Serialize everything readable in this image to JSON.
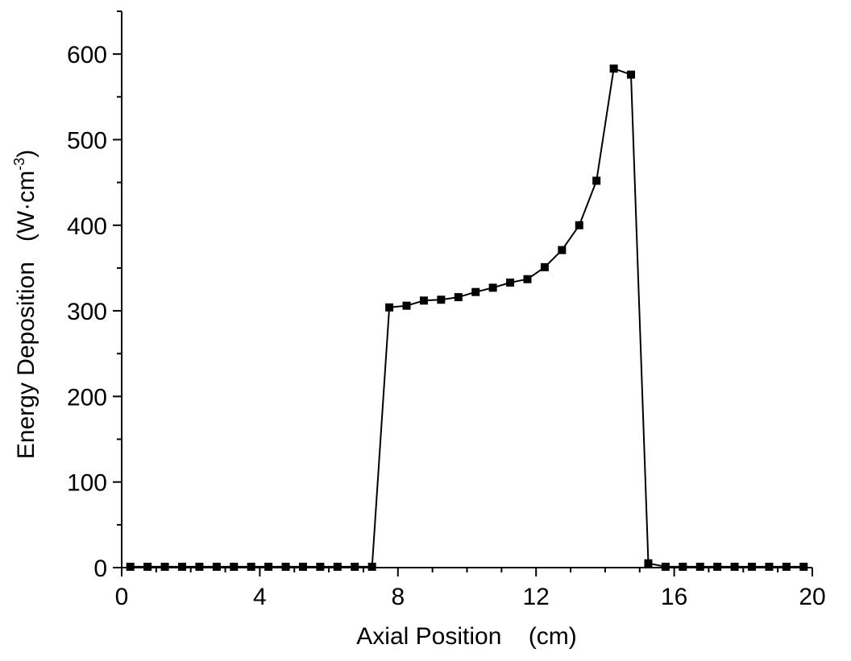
{
  "chart_data": {
    "type": "line",
    "title": "",
    "xlabel": "Axial Position    (cm)",
    "ylabel_main": "Energy Deposition   (W·cm",
    "ylabel_sup": "-3",
    "ylabel_close": ")",
    "xlim": [
      0,
      20
    ],
    "ylim": [
      0,
      650
    ],
    "xticks": [
      0,
      4,
      8,
      12,
      16,
      20
    ],
    "yticks": [
      0,
      100,
      200,
      300,
      400,
      500,
      600
    ],
    "xtick_labels": [
      "0",
      "4",
      "8",
      "12",
      "16",
      "20"
    ],
    "ytick_labels": [
      "0",
      "100",
      "200",
      "300",
      "400",
      "500",
      "600"
    ],
    "grid": false,
    "legend": "none",
    "color": "#000000",
    "marker": "square",
    "series": [
      {
        "x": [
          0.25,
          0.75,
          1.25,
          1.75,
          2.25,
          2.75,
          3.25,
          3.75,
          4.25,
          4.75,
          5.25,
          5.75,
          6.25,
          6.75,
          7.25,
          7.75,
          8.25,
          8.75,
          9.25,
          9.75,
          10.25,
          10.75,
          11.25,
          11.75,
          12.25,
          12.75,
          13.25,
          13.75,
          14.25,
          14.75,
          15.25,
          15.75,
          16.25,
          16.75,
          17.25,
          17.75,
          18.25,
          18.75,
          19.25,
          19.75
        ],
        "values": [
          1,
          1,
          1,
          1,
          1,
          1,
          1,
          1,
          1,
          1,
          1,
          1,
          1,
          1,
          1,
          304,
          306,
          312,
          313,
          316,
          322,
          327,
          333,
          337,
          351,
          371,
          400,
          452,
          583,
          576,
          5,
          1,
          1,
          1,
          1,
          1,
          1,
          1,
          1,
          1
        ]
      }
    ]
  }
}
